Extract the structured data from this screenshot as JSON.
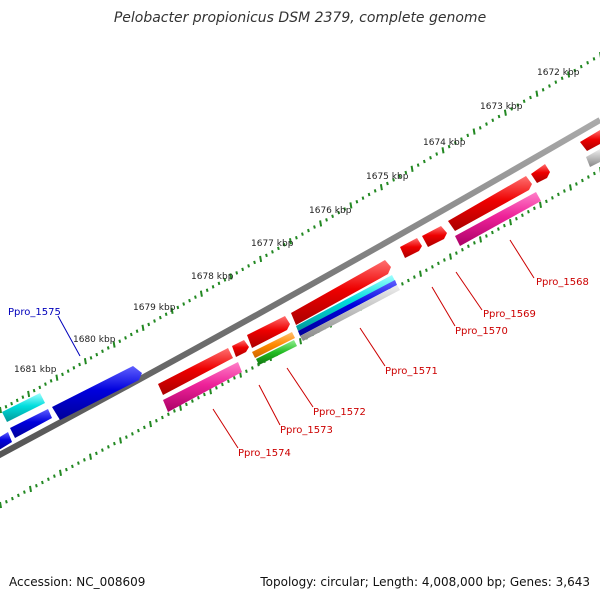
{
  "title": "Pelobacter propionicus DSM 2379, complete genome",
  "footer": {
    "accession": "Accession: NC_008609",
    "summary": "Topology: circular; Length: 4,008,000 bp; Genes: 3,643"
  },
  "kbp_labels": [
    "1672 kbp",
    "1673 kbp",
    "1674 kbp",
    "1675 kbp",
    "1676 kbp",
    "1677 kbp",
    "1678 kbp",
    "1679 kbp",
    "1680 kbp",
    "1681 kbp"
  ],
  "gene_labels": [
    {
      "text": "Ppro_1568",
      "color": "#cc0000"
    },
    {
      "text": "Ppro_1569",
      "color": "#cc0000"
    },
    {
      "text": "Ppro_1570",
      "color": "#cc0000"
    },
    {
      "text": "Ppro_1571",
      "color": "#cc0000"
    },
    {
      "text": "Ppro_1572",
      "color": "#cc0000"
    },
    {
      "text": "Ppro_1573",
      "color": "#cc0000"
    },
    {
      "text": "Ppro_1574",
      "color": "#cc0000"
    },
    {
      "text": "Ppro_1575",
      "color": "#0000bb"
    }
  ],
  "colors": {
    "backbone": "#777777",
    "ticks": "#228822",
    "forward_cds": "#ee0000",
    "reverse_cds": "#0000dd",
    "cyan": "#00cccc",
    "magenta": "#dd1188",
    "orange": "#ff8800",
    "green": "#22bb22",
    "grey": "#bbbbbb"
  }
}
